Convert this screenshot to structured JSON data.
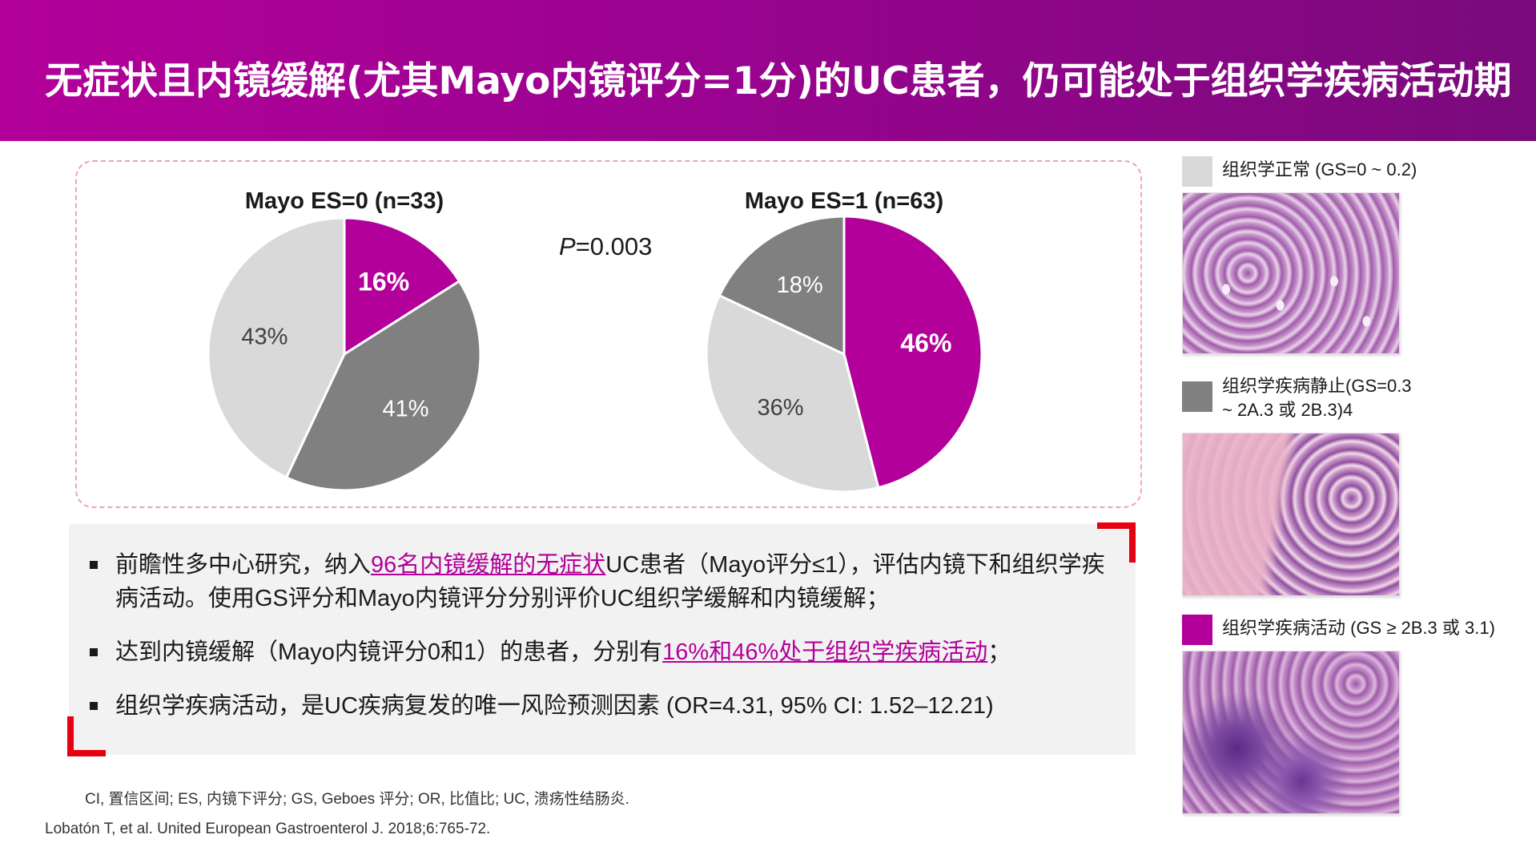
{
  "header": {
    "title": "无症状且内镜缓解(尤其Mayo内镜评分=1分)的UC患者，仍可能处于组织学疾病活动期"
  },
  "colors": {
    "normal": "#d9d9d9",
    "quiescent": "#808080",
    "active": "#b3009a"
  },
  "p_value": {
    "prefix": "P",
    "rest": "=0.003"
  },
  "chart_data": [
    {
      "type": "pie",
      "title": "Mayo ES=0 (n=33)",
      "slices": [
        {
          "category": "组织学疾病活动",
          "value": 16,
          "label": "16%",
          "color": "#b3009a"
        },
        {
          "category": "组织学疾病静止",
          "value": 41,
          "label": "41%",
          "color": "#808080"
        },
        {
          "category": "组织学正常",
          "value": 43,
          "label": "43%",
          "color": "#d9d9d9"
        }
      ]
    },
    {
      "type": "pie",
      "title": "Mayo ES=1 (n=63)",
      "slices": [
        {
          "category": "组织学疾病活动",
          "value": 46,
          "label": "46%",
          "color": "#b3009a"
        },
        {
          "category": "组织学正常",
          "value": 36,
          "label": "36%",
          "color": "#d9d9d9"
        },
        {
          "category": "组织学疾病静止",
          "value": 18,
          "label": "18%",
          "color": "#808080"
        }
      ]
    }
  ],
  "legend": {
    "normal": {
      "line1": "组织学正常 (GS=0 ~ 0.2)"
    },
    "quiescent": {
      "line1": "组织学疾病静止(GS=0.3",
      "line2": "~ 2A.3 或 2B.3)4"
    },
    "active": {
      "line1": "组织学疾病活动 (GS ≥ 2B.3 或 3.1)"
    }
  },
  "bullets": {
    "b1": {
      "part1": "前瞻性多中心研究，纳入",
      "highlight": "96名内镜缓解的无症状",
      "part2": "UC患者（Mayo评分≤1），评估内镜下和组织学疾病活动。使用GS评分和Mayo内镜评分分别评价UC组织学缓解和内镜缓解；"
    },
    "b2": {
      "part1": "达到内镜缓解（Mayo内镜评分0和1）的患者，分别有",
      "highlight": "16%和46%处于组织学疾病活动",
      "part2": "；"
    },
    "b3": {
      "text": "组织学疾病活动，是UC疾病复发的唯一风险预测因素 (OR=4.31, 95% CI: 1.52–12.21)"
    }
  },
  "footnotes": {
    "abbrev": "CI, 置信区间; ES, 内镜下评分; GS, Geboes 评分; OR, 比值比; UC, 溃疡性结肠炎.",
    "reference": "Lobatón T, et al. United European Gastroenterol J. 2018;6:765-72."
  }
}
